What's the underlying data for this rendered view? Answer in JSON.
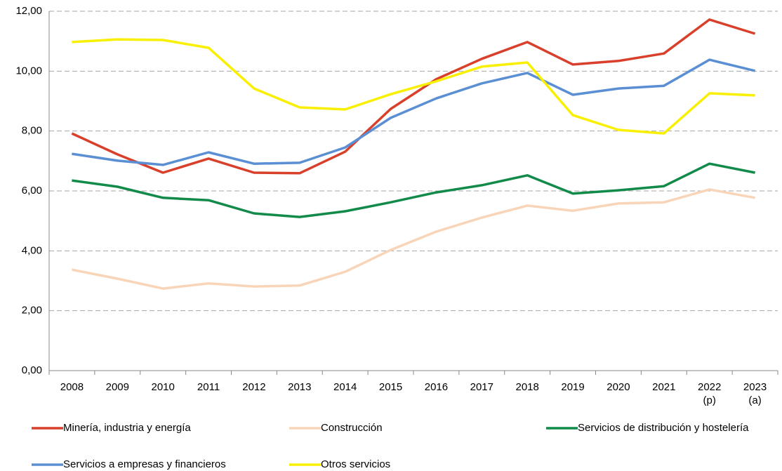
{
  "chart_data": {
    "type": "line",
    "categories": [
      "2008",
      "2009",
      "2010",
      "2011",
      "2012",
      "2013",
      "2014",
      "2015",
      "2016",
      "2017",
      "2018",
      "2019",
      "2020",
      "2021",
      "2022 (p)",
      "2023 (a)"
    ],
    "series": [
      {
        "name": "Minería, industria y energía",
        "color": "#d9402b",
        "values": [
          7.92,
          7.22,
          6.61,
          7.08,
          6.61,
          6.59,
          7.31,
          8.74,
          9.73,
          10.41,
          10.97,
          10.22,
          10.34,
          10.59,
          11.72,
          11.25
        ]
      },
      {
        "name": "Construcción",
        "color": "#f8d5b8",
        "values": [
          3.37,
          3.07,
          2.74,
          2.91,
          2.81,
          2.84,
          3.3,
          4.03,
          4.64,
          5.11,
          5.51,
          5.34,
          5.58,
          5.62,
          6.05,
          5.77
        ]
      },
      {
        "name": "Servicios de distribución y hostelería",
        "color": "#118a4a",
        "values": [
          6.35,
          6.14,
          5.77,
          5.69,
          5.25,
          5.13,
          5.32,
          5.62,
          5.95,
          6.19,
          6.52,
          5.91,
          6.02,
          6.16,
          6.91,
          6.61
        ]
      },
      {
        "name": "Servicios a empresas y financieros",
        "color": "#5b8fd4",
        "values": [
          7.24,
          7.01,
          6.87,
          7.29,
          6.91,
          6.94,
          7.45,
          8.44,
          9.09,
          9.59,
          9.94,
          9.21,
          9.42,
          9.51,
          10.38,
          10.01
        ]
      },
      {
        "name": "Otros servicios",
        "color": "#f8f000",
        "values": [
          10.97,
          11.06,
          11.04,
          10.78,
          9.42,
          8.79,
          8.72,
          9.23,
          9.66,
          10.15,
          10.29,
          8.53,
          8.04,
          7.92,
          9.26,
          9.19
        ]
      }
    ],
    "ylim": [
      0,
      12
    ],
    "yticks": [
      {
        "value": 0,
        "label": "0,00"
      },
      {
        "value": 2,
        "label": "2,00"
      },
      {
        "value": 4,
        "label": "4,00"
      },
      {
        "value": 6,
        "label": "6,00"
      },
      {
        "value": 8,
        "label": "8,00"
      },
      {
        "value": 10,
        "label": "10,00"
      },
      {
        "value": 12,
        "label": "12,00"
      }
    ],
    "grid": true
  }
}
